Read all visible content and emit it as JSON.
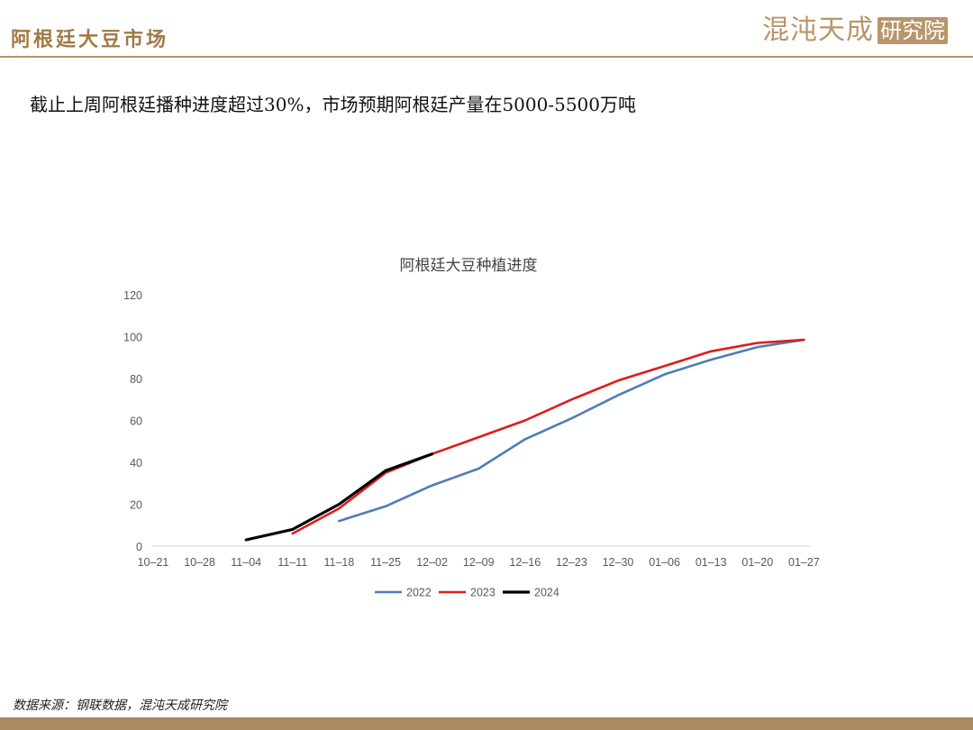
{
  "header": {
    "title": "阿根廷大豆市场",
    "logo_text": "混沌天成",
    "logo_seal": "研究院"
  },
  "subtitle": "截止上周阿根廷播种进度超过30%，市场预期阿根廷产量在5000-5500万吨",
  "source": "数据来源：钢联数据，混沌天成研究院",
  "chart_data": {
    "type": "line",
    "title": "阿根廷大豆种植进度",
    "categories": [
      "10–21",
      "10–28",
      "11–04",
      "11–11",
      "11–18",
      "11–25",
      "12–02",
      "12–09",
      "12–16",
      "12–23",
      "12–30",
      "01–06",
      "01–13",
      "01–20",
      "01–27"
    ],
    "ylim": [
      0,
      120
    ],
    "yticks": [
      0,
      20,
      40,
      60,
      80,
      100,
      120
    ],
    "grid": false,
    "legend_position": "bottom",
    "series": [
      {
        "name": "2022",
        "color": "#4f7db8",
        "values": [
          null,
          null,
          null,
          null,
          12,
          19,
          29,
          37,
          51,
          61,
          72,
          82,
          89,
          95,
          98.5
        ]
      },
      {
        "name": "2023",
        "color": "#e01b1b",
        "values": [
          null,
          null,
          null,
          6,
          18,
          35,
          44,
          52,
          60,
          70,
          79,
          86,
          93,
          97,
          98.5
        ]
      },
      {
        "name": "2024",
        "color": "#000000",
        "values": [
          null,
          null,
          3,
          8,
          20,
          36,
          44,
          null,
          null,
          null,
          null,
          null,
          null,
          null,
          null
        ]
      }
    ]
  }
}
